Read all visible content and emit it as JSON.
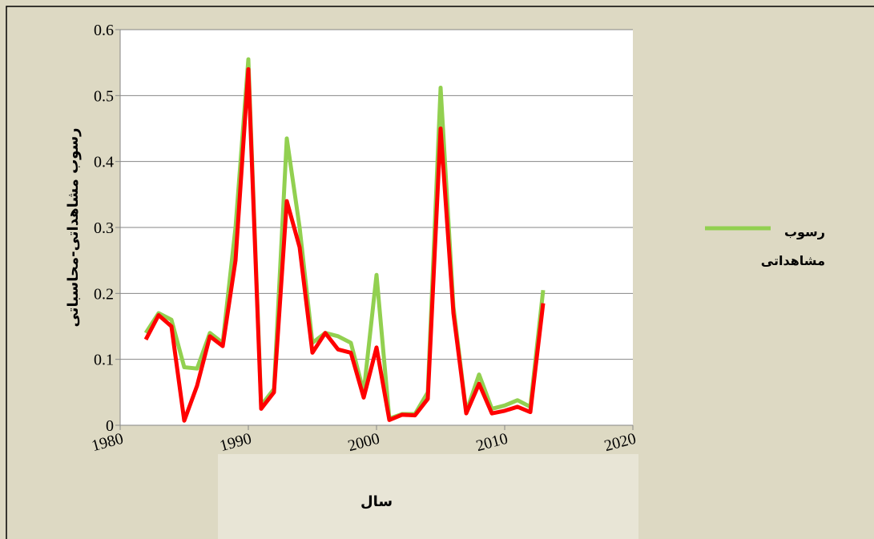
{
  "chart_data": {
    "type": "line",
    "x_label": "سال",
    "y_label": "رسوب مشاهداتی-محاسباتی",
    "x": [
      1982,
      1983,
      1984,
      1985,
      1986,
      1987,
      1988,
      1989,
      1990,
      1991,
      1992,
      1993,
      1994,
      1995,
      1996,
      1997,
      1998,
      1999,
      2000,
      2001,
      2002,
      2003,
      2004,
      2005,
      2006,
      2007,
      2008,
      2009,
      2010,
      2011,
      2012,
      2013
    ],
    "series": [
      {
        "name": "رسوب مشاهداتی",
        "color": "#92d050",
        "values": [
          0.14,
          0.17,
          0.16,
          0.088,
          0.086,
          0.14,
          0.125,
          0.3,
          0.555,
          0.03,
          0.055,
          0.435,
          0.3,
          0.125,
          0.14,
          0.135,
          0.125,
          0.05,
          0.228,
          0.01,
          0.017,
          0.017,
          0.05,
          0.512,
          0.18,
          0.02,
          0.077,
          0.025,
          0.03,
          0.038,
          0.028,
          0.205
        ]
      },
      {
        "color": "#ff0000",
        "values": [
          0.13,
          0.167,
          0.15,
          0.007,
          0.06,
          0.135,
          0.12,
          0.25,
          0.54,
          0.025,
          0.05,
          0.34,
          0.27,
          0.11,
          0.14,
          0.115,
          0.11,
          0.042,
          0.118,
          0.008,
          0.016,
          0.015,
          0.04,
          0.45,
          0.17,
          0.018,
          0.063,
          0.018,
          0.022,
          0.028,
          0.02,
          0.185
        ]
      }
    ],
    "xlim": [
      1980,
      2020
    ],
    "xticks": [
      1980,
      1990,
      2000,
      2010,
      2020
    ],
    "ylim": [
      0,
      0.6
    ],
    "yticks": [
      0,
      0.1,
      0.2,
      0.3,
      0.4,
      0.5,
      0.6
    ],
    "grid": true,
    "legend": "right"
  }
}
